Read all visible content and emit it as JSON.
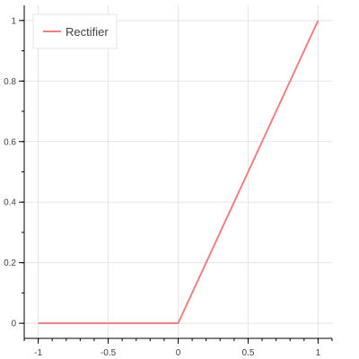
{
  "chart_data": {
    "type": "line",
    "xlim": [
      -1.1,
      1.1
    ],
    "ylim": [
      -0.05,
      1.05
    ],
    "x_ticks": [
      {
        "value": -1,
        "label": "-1"
      },
      {
        "value": -0.5,
        "label": "-0.5"
      },
      {
        "value": 0,
        "label": "0"
      },
      {
        "value": 0.5,
        "label": "0.5"
      },
      {
        "value": 1,
        "label": "1"
      }
    ],
    "y_ticks": [
      {
        "value": 0,
        "label": "0"
      },
      {
        "value": 0.2,
        "label": "0.2"
      },
      {
        "value": 0.4,
        "label": "0.4"
      },
      {
        "value": 0.6,
        "label": "0.6"
      },
      {
        "value": 0.8,
        "label": "0.8"
      },
      {
        "value": 1,
        "label": "1"
      }
    ],
    "grid": true,
    "legend_position": "top-left",
    "series": [
      {
        "name": "Rectifier",
        "color": "#f08080",
        "x": [
          -1,
          -0.5,
          0,
          0.02,
          0.5,
          1
        ],
        "y": [
          0,
          0,
          0,
          0.02,
          0.5,
          1
        ]
      }
    ]
  }
}
